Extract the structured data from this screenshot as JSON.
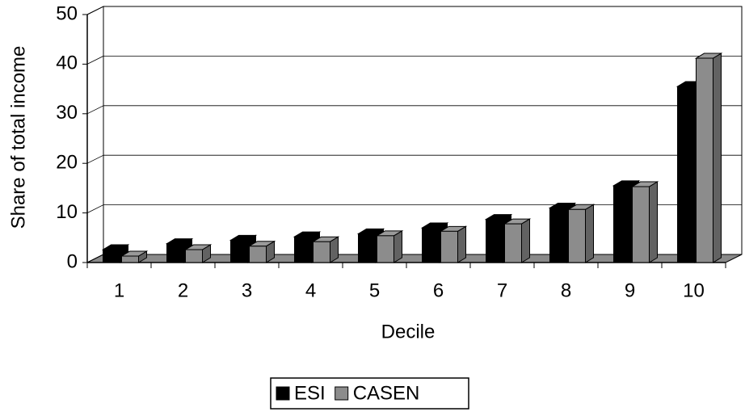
{
  "chart_data": {
    "type": "bar3d",
    "y_label": "Share of total income",
    "x_label": "Decile",
    "categories": [
      "1",
      "2",
      "3",
      "4",
      "5",
      "6",
      "7",
      "8",
      "9",
      "10"
    ],
    "series": [
      {
        "name": "ESI",
        "color": "#000000",
        "values": [
          2.6,
          3.8,
          4.5,
          5.2,
          5.8,
          7.0,
          8.7,
          11.0,
          15.5,
          35.5
        ]
      },
      {
        "name": "CASEN",
        "color": "#8c8c8c",
        "values": [
          1.3,
          2.6,
          3.3,
          4.2,
          5.4,
          6.3,
          7.8,
          10.7,
          15.3,
          41.2
        ]
      }
    ],
    "ylim": [
      0,
      50
    ],
    "yticks": [
      0,
      10,
      20,
      30,
      40,
      50
    ],
    "grid": true,
    "legend": "bottom"
  }
}
